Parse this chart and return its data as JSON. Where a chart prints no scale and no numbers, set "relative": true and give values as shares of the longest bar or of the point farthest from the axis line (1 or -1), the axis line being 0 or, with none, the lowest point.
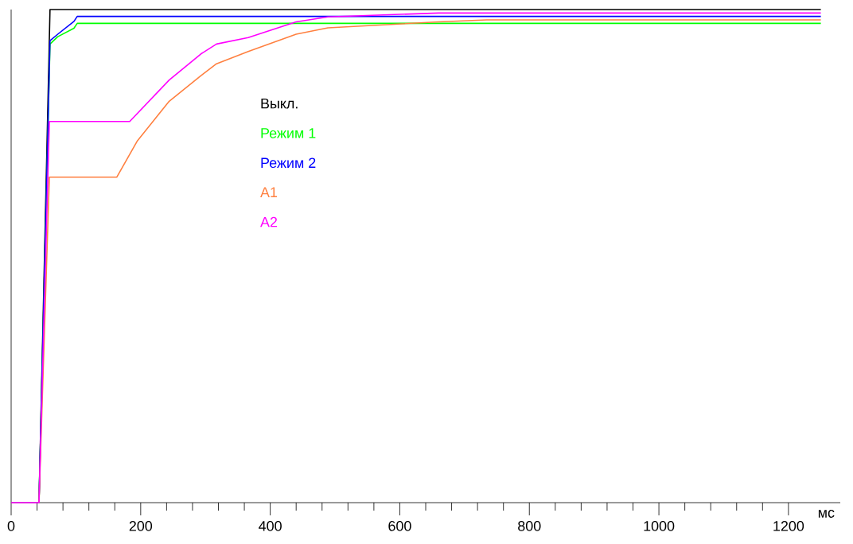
{
  "chart_data": {
    "type": "line",
    "relative": true,
    "xlabel": "мс",
    "xlim": [
      0,
      1280
    ],
    "xticks": [
      0,
      200,
      400,
      600,
      800,
      1000,
      1200
    ],
    "legend": "top",
    "marker": "none",
    "line_style": "solid",
    "grid": false,
    "series": [
      {
        "name": "Выкл.",
        "color": "#000000",
        "x": [
          43,
          60,
          100,
          300,
          600,
          900,
          1250
        ],
        "values": [
          0,
          1.0,
          1.0,
          1.0,
          1.0,
          1.0,
          1.0
        ]
      },
      {
        "name": "Режим 1",
        "color": "#00ff00",
        "x": [
          43,
          60,
          72,
          97,
          102,
          300,
          600,
          900,
          1250
        ],
        "values": [
          0,
          0.93,
          0.945,
          0.962,
          0.972,
          0.972,
          0.972,
          0.972,
          0.972
        ]
      },
      {
        "name": "Режим 2",
        "color": "#0000ff",
        "x": [
          43,
          60,
          72,
          97,
          102,
          300,
          600,
          900,
          1250
        ],
        "values": [
          0,
          0.937,
          0.95,
          0.976,
          0.986,
          0.986,
          0.986,
          0.986,
          0.986
        ]
      },
      {
        "name": "A1",
        "color": "#ff8040",
        "x": [
          43,
          59,
          163,
          195,
          244,
          293,
          317,
          366,
          440,
          489,
          660,
          734,
          1250
        ],
        "values": [
          0,
          0.66,
          0.66,
          0.734,
          0.814,
          0.866,
          0.89,
          0.915,
          0.95,
          0.963,
          0.975,
          0.979,
          0.979
        ]
      },
      {
        "name": "A2",
        "color": "#ff00ff",
        "x": [
          0,
          43,
          59,
          183,
          244,
          293,
          317,
          366,
          440,
          489,
          660,
          1250
        ],
        "values": [
          0,
          0,
          0.773,
          0.773,
          0.857,
          0.91,
          0.93,
          0.943,
          0.975,
          0.985,
          0.993,
          0.993
        ]
      }
    ]
  }
}
